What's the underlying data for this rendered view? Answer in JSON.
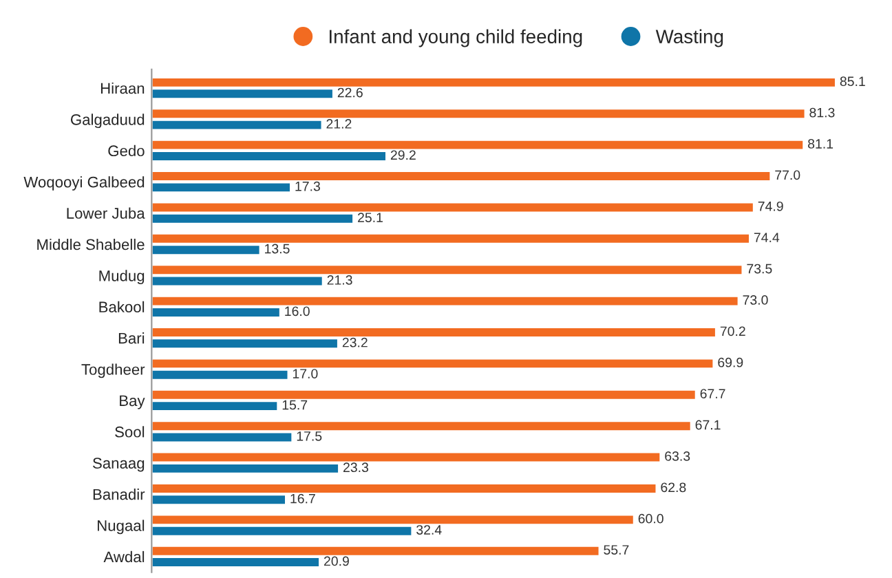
{
  "chart_data": {
    "type": "bar",
    "orientation": "horizontal",
    "categories": [
      "Hiraan",
      "Galgaduud",
      "Gedo",
      "Woqooyi Galbeed",
      "Lower Juba",
      "Middle Shabelle",
      "Mudug",
      "Bakool",
      "Bari",
      "Togdheer",
      "Bay",
      "Sool",
      "Sanaag",
      "Banadir",
      "Nugaal",
      "Awdal"
    ],
    "series": [
      {
        "name": "Infant and young child feeding",
        "color": "#f26b21",
        "values": [
          85.1,
          81.3,
          81.1,
          77.0,
          74.9,
          74.4,
          73.5,
          73.0,
          70.2,
          69.9,
          67.7,
          67.1,
          63.3,
          62.8,
          60.0,
          55.7
        ],
        "value_labels": [
          "85.1",
          "81.3",
          "81.1",
          "77.0",
          "74.9",
          "74.4",
          "73.5",
          "73.0",
          "70.2",
          "69.9",
          "67.7",
          "67.1",
          "63.3",
          "62.8",
          "60.0",
          "55.7"
        ]
      },
      {
        "name": "Wasting",
        "color": "#0f75a8",
        "values": [
          22.6,
          21.2,
          29.2,
          17.3,
          25.1,
          13.5,
          21.3,
          16.0,
          23.2,
          17.0,
          15.7,
          17.5,
          23.3,
          16.7,
          32.4,
          20.9
        ],
        "value_labels": [
          "22.6",
          "21.2",
          "29.2",
          "17.3",
          "25.1",
          "13.5",
          "21.3",
          "16.0",
          "23.2",
          "17.0",
          "15.7",
          "17.5",
          "23.3",
          "16.7",
          "32.4",
          "20.9"
        ]
      }
    ],
    "legend": "top",
    "grid": false,
    "tick_labels": "y"
  }
}
